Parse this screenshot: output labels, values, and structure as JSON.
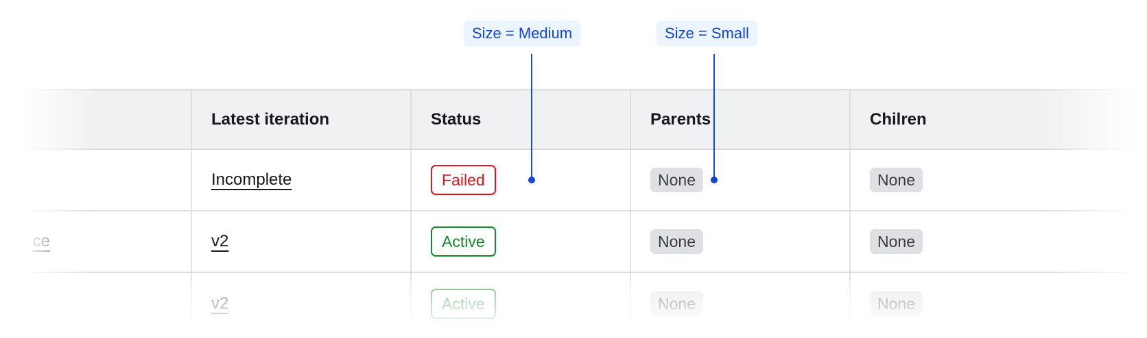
{
  "annotations": [
    {
      "label": "Size = Medium"
    },
    {
      "label": "Size = Small"
    }
  ],
  "table": {
    "headers": [
      "",
      "Latest iteration",
      "Status",
      "Parents",
      "Chilren"
    ],
    "rows": [
      {
        "name": "",
        "iteration": "Incomplete",
        "status": "Failed",
        "parents": "None",
        "children": "None"
      },
      {
        "name": "ce",
        "iteration": "v2",
        "status": "Active",
        "parents": "None",
        "children": "None"
      },
      {
        "name": "",
        "iteration": "v2",
        "status": "Active",
        "parents": "None",
        "children": "None"
      }
    ]
  },
  "colors": {
    "failed": "#e0161e",
    "active": "#148a2a",
    "annotation": "#1447d6"
  }
}
